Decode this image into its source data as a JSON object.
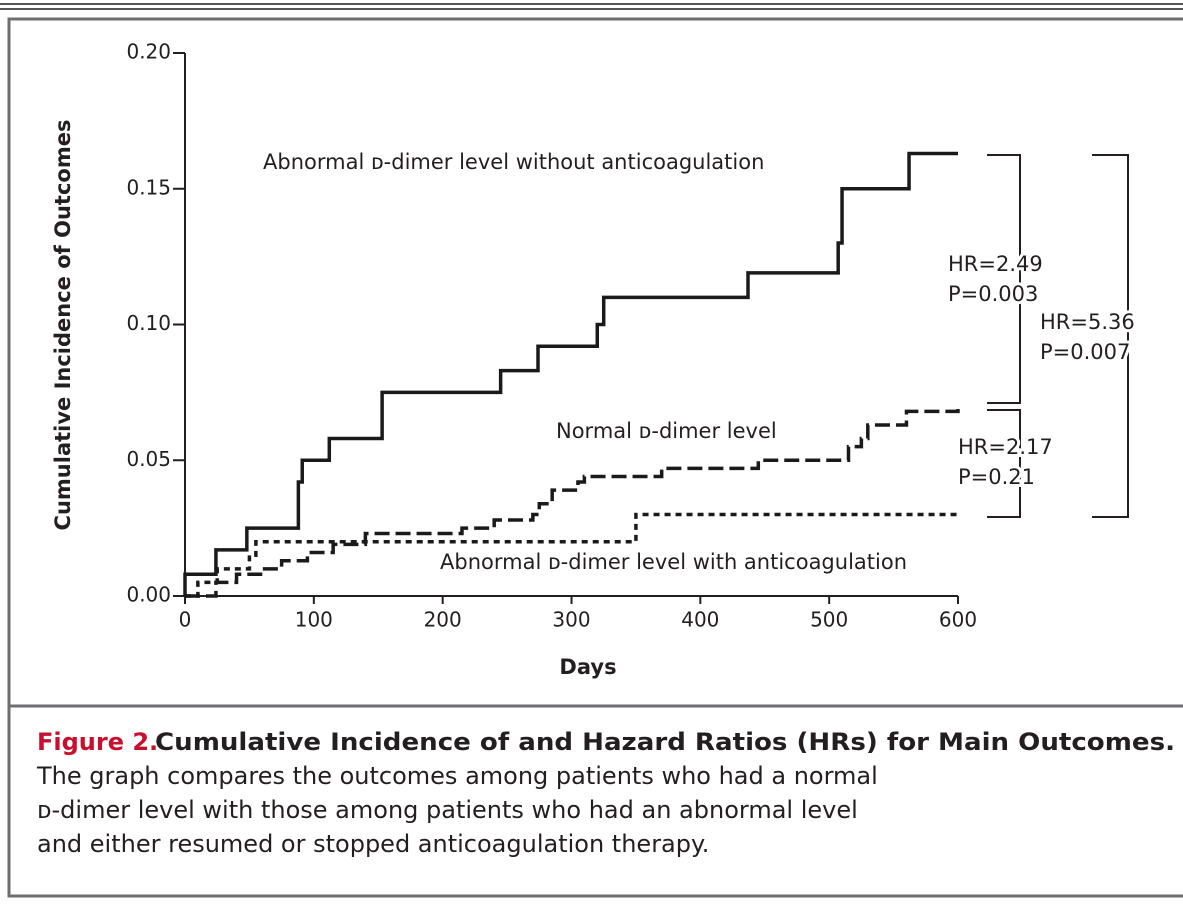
{
  "chart_data": {
    "type": "step",
    "xlabel": "Days",
    "ylabel": "Cumulative Incidence of Outcomes",
    "xlim": [
      0,
      600
    ],
    "ylim": [
      0,
      0.2
    ],
    "xticks": [
      0,
      100,
      200,
      300,
      400,
      500,
      600
    ],
    "yticks": [
      {
        "value": 0,
        "label": "0.00"
      },
      {
        "value": 0.05,
        "label": "0.05"
      },
      {
        "value": 0.1,
        "label": "0.10"
      },
      {
        "value": 0.15,
        "label": "0.15"
      },
      {
        "value": 0.2,
        "label": "0.20"
      }
    ],
    "series": [
      {
        "name": "Abnormal ᴅ-dimer level without anticoagulation",
        "color": "#1a1a1a",
        "dash": "solid",
        "x": [
          0,
          0,
          24,
          48,
          88,
          91,
          112,
          153,
          245,
          274,
          320,
          325,
          437,
          507,
          510,
          562,
          600
        ],
        "values": [
          0,
          0.008,
          0.017,
          0.025,
          0.042,
          0.05,
          0.058,
          0.075,
          0.083,
          0.092,
          0.1,
          0.11,
          0.119,
          0.13,
          0.15,
          0.163,
          0.163
        ]
      },
      {
        "name": "Normal ᴅ-dimer level",
        "color": "#1a1a1a",
        "dash": "dashed",
        "x": [
          0,
          24,
          40,
          60,
          75,
          95,
          115,
          140,
          215,
          240,
          270,
          275,
          285,
          305,
          310,
          370,
          445,
          515,
          525,
          530,
          560,
          600
        ],
        "values": [
          0,
          0.005,
          0.008,
          0.01,
          0.013,
          0.016,
          0.019,
          0.023,
          0.025,
          0.028,
          0.03,
          0.034,
          0.039,
          0.042,
          0.044,
          0.047,
          0.05,
          0.055,
          0.058,
          0.063,
          0.068,
          0.069
        ]
      },
      {
        "name": "Abnormal ᴅ-dimer level with anticoagulation",
        "color": "#1a1a1a",
        "dash": "dotted",
        "x": [
          0,
          10,
          25,
          50,
          55,
          350,
          600
        ],
        "values": [
          0,
          0.005,
          0.01,
          0.015,
          0.02,
          0.03,
          0.03
        ]
      }
    ],
    "annotations": [
      [
        "HR=2.49",
        "P=0.003"
      ],
      [
        "HR=5.36",
        "P=0.007"
      ],
      [
        "HR=2.17",
        "P=0.21"
      ]
    ],
    "figure_label": "Figure 2.",
    "caption_title": "Cumulative Incidence of and Hazard Ratios (HRs) for Main Outcomes.",
    "caption_lines": [
      "The graph compares the outcomes among patients who had a normal",
      "ᴅ-dimer level with those among patients who had an abnormal level",
      "and either resumed or stopped anticoagulation therapy."
    ]
  }
}
